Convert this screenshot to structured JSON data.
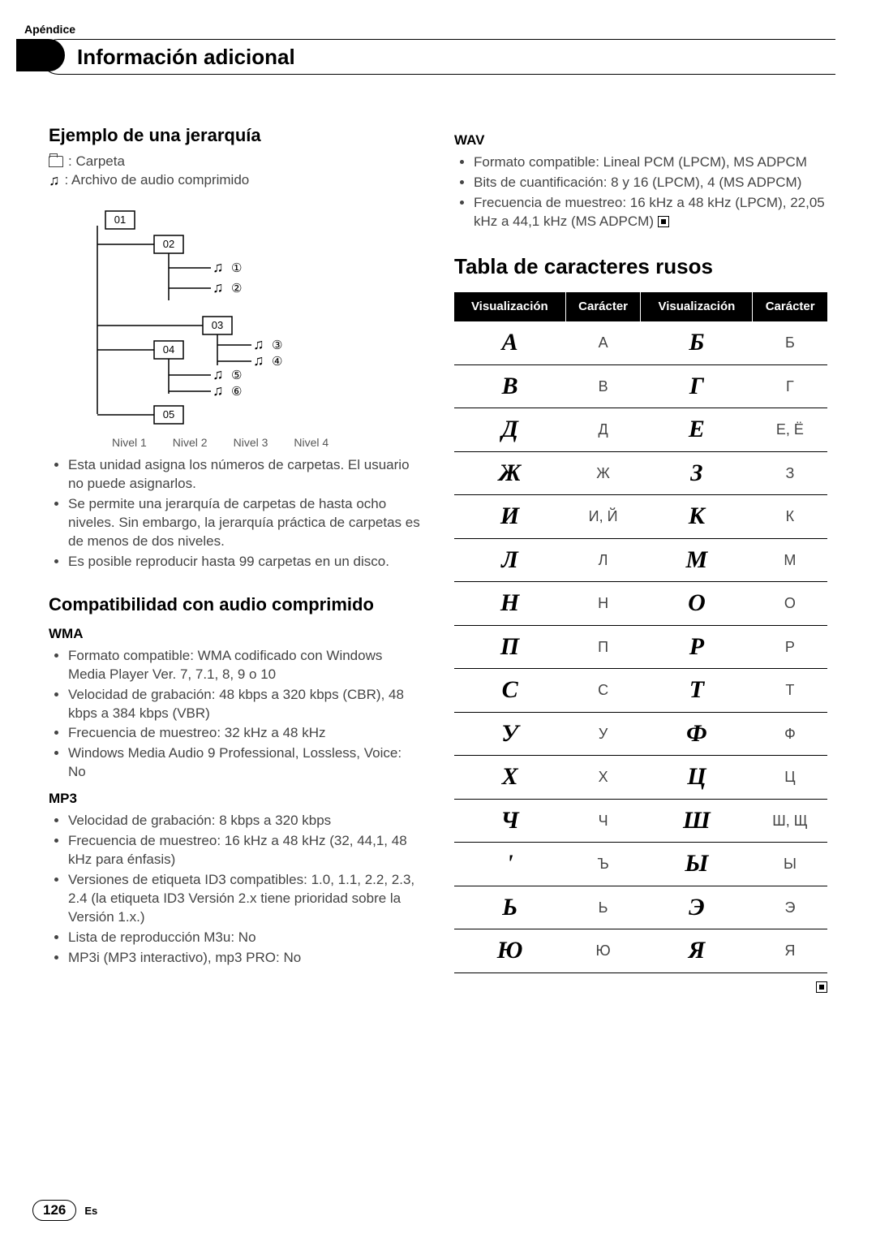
{
  "appendix": "Apéndice",
  "headerTitle": "Información adicional",
  "left": {
    "h_ejemplo": "Ejemplo de una jerarquía",
    "legend_folder": ": Carpeta",
    "legend_audio": ": Archivo de audio comprimido",
    "diagram": {
      "folders": [
        "01",
        "02",
        "03",
        "04",
        "05"
      ],
      "levels": [
        "Nivel 1",
        "Nivel 2",
        "Nivel 3",
        "Nivel 4"
      ],
      "circled": [
        "①",
        "②",
        "③",
        "④",
        "⑤",
        "⑥"
      ]
    },
    "folder_notes": [
      "Esta unidad asigna los números de carpetas. El usuario no puede asignarlos.",
      "Se permite una jerarquía de carpetas de hasta ocho niveles. Sin embargo, la jerarquía práctica de carpetas es de menos de dos niveles.",
      "Es posible reproducir hasta 99 carpetas en un disco."
    ],
    "h_compat": "Compatibilidad con audio comprimido",
    "wma_h": "WMA",
    "wma": [
      "Formato compatible: WMA codificado con Windows Media Player Ver. 7, 7.1, 8, 9 o 10",
      "Velocidad de grabación: 48 kbps a 320 kbps (CBR), 48 kbps a 384 kbps (VBR)",
      "Frecuencia de muestreo: 32 kHz a 48 kHz",
      "Windows Media Audio 9 Professional, Lossless, Voice: No"
    ],
    "mp3_h": "MP3",
    "mp3": [
      "Velocidad de grabación: 8 kbps a 320 kbps",
      "Frecuencia de muestreo: 16 kHz a 48 kHz (32, 44,1, 48 kHz para énfasis)",
      "Versiones de etiqueta ID3 compatibles: 1.0, 1.1, 2.2, 2.3, 2.4 (la etiqueta ID3 Versión 2.x tiene prioridad sobre la Versión 1.x.)",
      "Lista de reproducción M3u: No",
      "MP3i (MP3 interactivo), mp3 PRO: No"
    ]
  },
  "right": {
    "wav_h": "WAV",
    "wav": [
      "Formato compatible: Lineal PCM (LPCM), MS ADPCM",
      "Bits de cuantificación: 8 y 16 (LPCM), 4 (MS ADPCM)",
      "Frecuencia de muestreo: 16 kHz a 48 kHz (LPCM), 22,05 kHz a 44,1 kHz (MS ADPCM)"
    ],
    "h_russian": "Tabla de caracteres rusos",
    "table_headers": [
      "Visualización",
      "Carácter",
      "Visualización",
      "Carácter"
    ],
    "rows": [
      {
        "d1": "А",
        "c1": "А",
        "d2": "Б",
        "c2": "Б"
      },
      {
        "d1": "В",
        "c1": "В",
        "d2": "Г",
        "c2": "Г"
      },
      {
        "d1": "Д",
        "c1": "Д",
        "d2": "Е",
        "c2": "Е, Ё"
      },
      {
        "d1": "Ж",
        "c1": "Ж",
        "d2": "З",
        "c2": "З"
      },
      {
        "d1": "И",
        "c1": "И, Й",
        "d2": "К",
        "c2": "К"
      },
      {
        "d1": "Л",
        "c1": "Л",
        "d2": "М",
        "c2": "М"
      },
      {
        "d1": "Н",
        "c1": "Н",
        "d2": "О",
        "c2": "О"
      },
      {
        "d1": "П",
        "c1": "П",
        "d2": "Р",
        "c2": "Р"
      },
      {
        "d1": "С",
        "c1": "С",
        "d2": "Т",
        "c2": "Т"
      },
      {
        "d1": "У",
        "c1": "У",
        "d2": "Ф",
        "c2": "Ф"
      },
      {
        "d1": "Х",
        "c1": "Х",
        "d2": "Ц",
        "c2": "Ц"
      },
      {
        "d1": "Ч",
        "c1": "Ч",
        "d2": "Ш",
        "c2": "Ш, Щ"
      },
      {
        "d1": "ʹ",
        "c1": "Ъ",
        "d2": "Ы",
        "c2": "Ы"
      },
      {
        "d1": "Ь",
        "c1": "Ь",
        "d2": "Э",
        "c2": "Э"
      },
      {
        "d1": "Ю",
        "c1": "Ю",
        "d2": "Я",
        "c2": "Я"
      }
    ]
  },
  "footer": {
    "page": "126",
    "lang": "Es"
  }
}
